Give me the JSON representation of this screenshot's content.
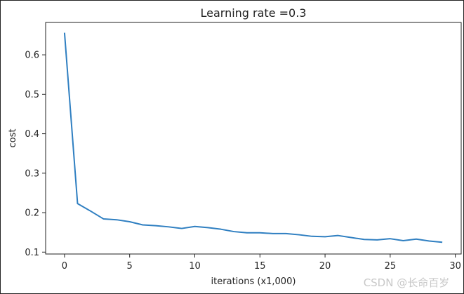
{
  "chart_data": {
    "type": "line",
    "title": "Learning rate =0.3",
    "xlabel": "iterations (x1,000)",
    "ylabel": "cost",
    "xlim": [
      -1.45,
      30.45
    ],
    "ylim": [
      0.0952,
      0.682
    ],
    "x_ticks": [
      0,
      5,
      10,
      15,
      20,
      25,
      30
    ],
    "y_ticks": [
      0.1,
      0.2,
      0.3,
      0.4,
      0.5,
      0.6
    ],
    "y_tick_labels": [
      "0.1",
      "0.2",
      "0.3",
      "0.4",
      "0.5",
      "0.6"
    ],
    "grid": false,
    "line_color": "#2f7fc1",
    "series": [
      {
        "name": "cost",
        "x": [
          0,
          1,
          2,
          3,
          4,
          5,
          6,
          7,
          8,
          9,
          10,
          11,
          12,
          13,
          14,
          15,
          16,
          17,
          18,
          19,
          20,
          21,
          22,
          23,
          24,
          25,
          26,
          27,
          28,
          29
        ],
        "values": [
          0.656,
          0.223,
          0.204,
          0.184,
          0.182,
          0.177,
          0.169,
          0.167,
          0.164,
          0.16,
          0.165,
          0.162,
          0.158,
          0.152,
          0.149,
          0.149,
          0.147,
          0.147,
          0.144,
          0.14,
          0.139,
          0.142,
          0.137,
          0.132,
          0.131,
          0.134,
          0.129,
          0.133,
          0.128,
          0.125
        ]
      }
    ]
  },
  "watermark": "CSDN @长命百岁 ︎"
}
